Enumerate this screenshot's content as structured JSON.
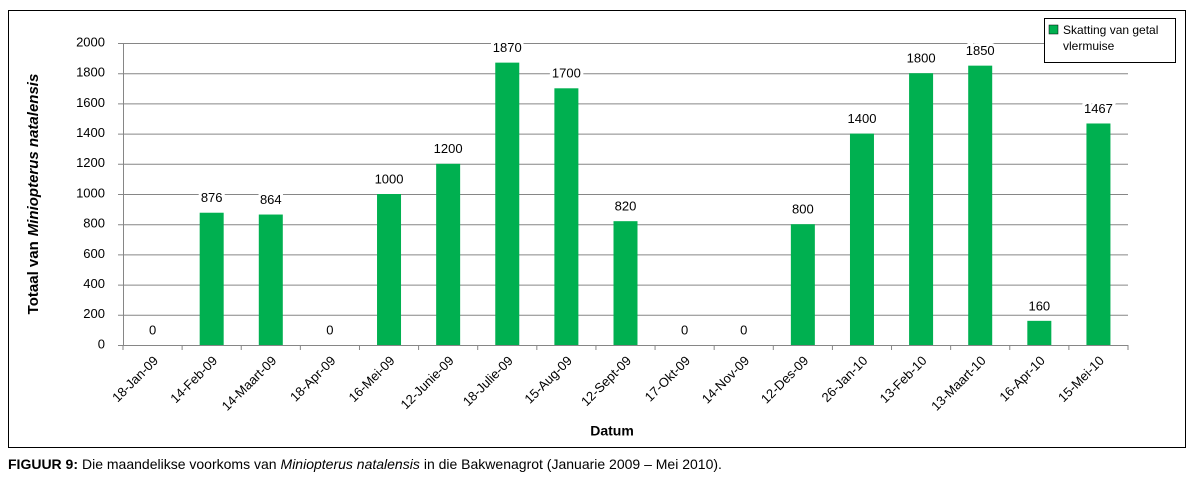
{
  "chart_data": {
    "type": "bar",
    "xlabel": "Datum",
    "ylabel": {
      "prefix": "Totaal van",
      "italic": "Miniopterus natalensis"
    },
    "categories": [
      "18-Jan-09",
      "14-Feb-09",
      "14-Maart-09",
      "18-Apr-09",
      "16-Mei-09",
      "12-Junie-09",
      "18-Julie-09",
      "15-Aug-09",
      "12-Sept-09",
      "17-Okt-09",
      "14-Nov-09",
      "12-Des-09",
      "26-Jan-10",
      "13-Feb-10",
      "13-Maart-10",
      "16-Apr-10",
      "15-Mei-10"
    ],
    "series": [
      {
        "name": "Skatting van getal vlermuise",
        "color": "#00b050",
        "values": [
          0,
          876,
          864,
          0,
          1000,
          1200,
          1870,
          1700,
          820,
          0,
          0,
          800,
          1400,
          1800,
          1850,
          160,
          1467
        ]
      }
    ],
    "ylim": [
      0,
      2000
    ],
    "yticks": [
      0,
      200,
      400,
      600,
      800,
      1000,
      1200,
      1400,
      1600,
      1800,
      2000
    ],
    "grid": true,
    "legend": "top-right"
  },
  "caption": {
    "label": "FIGUUR 9:",
    "text_1": "Die maandelikse voorkoms van",
    "species": "Miniopterus natalensis",
    "text_2": "in die Bakwenagrot (Januarie 2009 – Mei 2010)."
  }
}
